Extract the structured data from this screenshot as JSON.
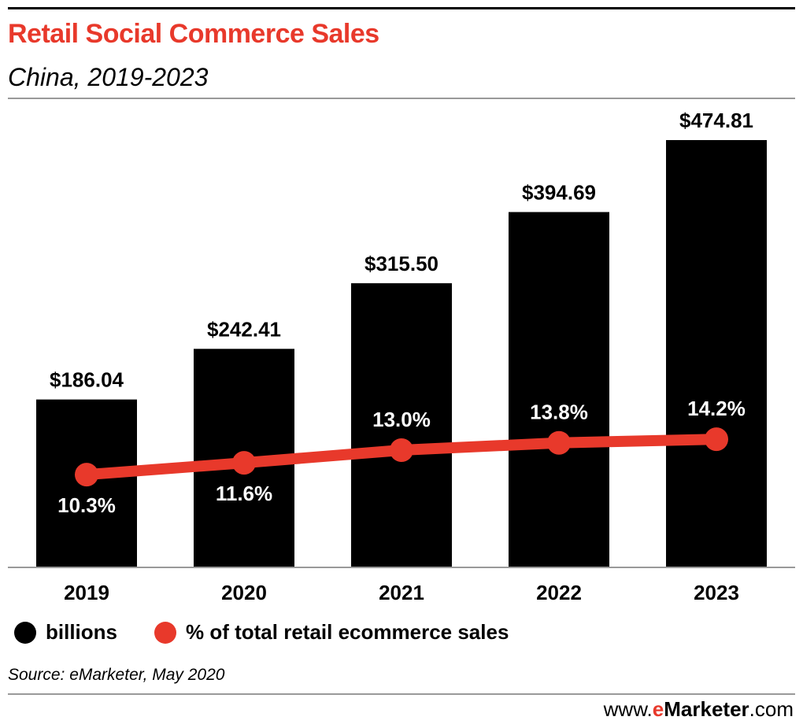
{
  "title": "Retail Social Commerce Sales",
  "subtitle": "China, 2019-2023",
  "source": "Source: eMarketer, May 2020",
  "logo": {
    "prefix": "www.",
    "e": "e",
    "rest": "Marketer",
    "suffix": ".com"
  },
  "colors": {
    "bar": "#000000",
    "line": "#e8392b"
  },
  "chart_data": {
    "type": "bar+line",
    "categories": [
      "2019",
      "2020",
      "2021",
      "2022",
      "2023"
    ],
    "series": [
      {
        "name": "billions",
        "type": "bar",
        "values": [
          186.04,
          242.41,
          315.5,
          394.69,
          474.81
        ],
        "labels": [
          "$186.04",
          "$242.41",
          "$315.50",
          "$394.69",
          "$474.81"
        ]
      },
      {
        "name": "% of total retail ecommerce sales",
        "type": "line",
        "values": [
          10.3,
          11.6,
          13.0,
          13.8,
          14.2
        ],
        "labels": [
          "10.3%",
          "11.6%",
          "13.0%",
          "13.8%",
          "14.2%"
        ]
      }
    ],
    "ylim_bar": [
      0,
      474.81
    ],
    "grid": false,
    "legend_position": "bottom-left"
  }
}
